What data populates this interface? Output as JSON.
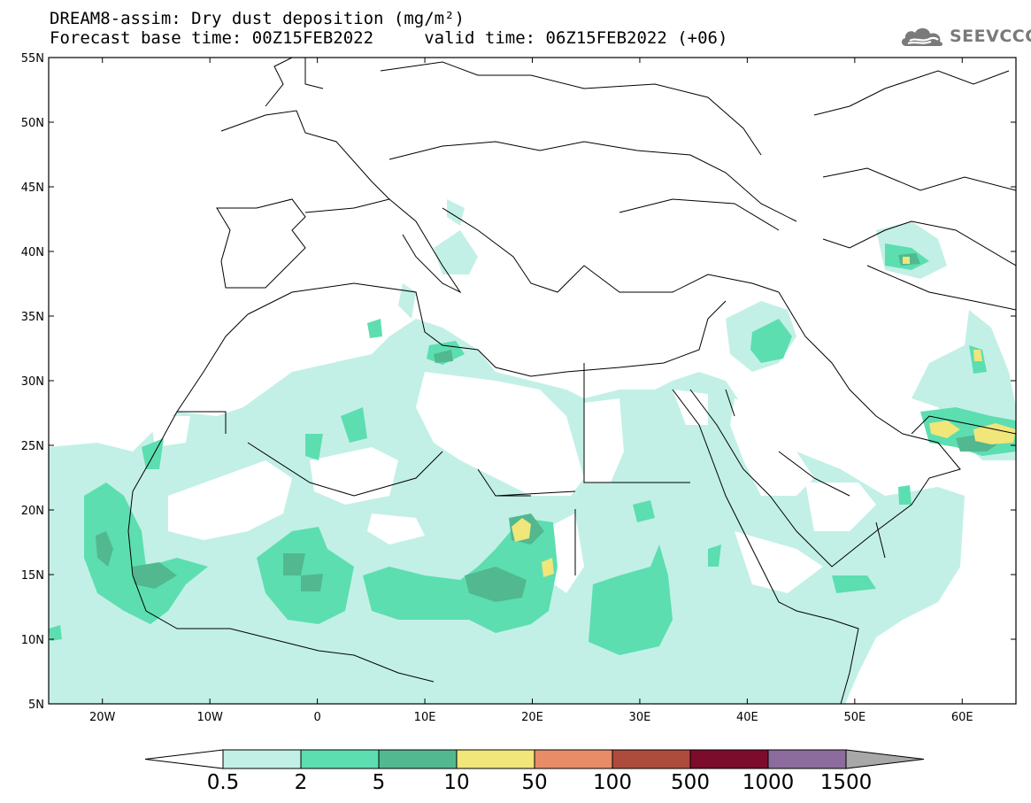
{
  "header": {
    "title_line1": "DREAM8-assim: Dry dust deposition (mg/m²)",
    "title_line2": "Forecast base time: 00Z15FEB2022     valid time: 06Z15FEB2022 (+06)",
    "logo_text": "SEEVCCC"
  },
  "map": {
    "lon_range": [
      -25,
      65
    ],
    "lat_range": [
      5,
      55
    ],
    "lat_ticks": [
      {
        "value": 55,
        "label": "55N"
      },
      {
        "value": 50,
        "label": "50N"
      },
      {
        "value": 45,
        "label": "45N"
      },
      {
        "value": 40,
        "label": "40N"
      },
      {
        "value": 35,
        "label": "35N"
      },
      {
        "value": 30,
        "label": "30N"
      },
      {
        "value": 25,
        "label": "25N"
      },
      {
        "value": 20,
        "label": "20N"
      },
      {
        "value": 15,
        "label": "15N"
      },
      {
        "value": 10,
        "label": "10N"
      },
      {
        "value": 5,
        "label": "5N"
      }
    ],
    "lon_ticks": [
      {
        "value": -20,
        "label": "20W"
      },
      {
        "value": -10,
        "label": "10W"
      },
      {
        "value": 0,
        "label": "0"
      },
      {
        "value": 10,
        "label": "10E"
      },
      {
        "value": 20,
        "label": "20E"
      },
      {
        "value": 30,
        "label": "30E"
      },
      {
        "value": 40,
        "label": "40E"
      },
      {
        "value": 50,
        "label": "50E"
      },
      {
        "value": 60,
        "label": "60E"
      }
    ]
  },
  "legend": {
    "labels": [
      "0.5",
      "2",
      "5",
      "10",
      "50",
      "100",
      "500",
      "1000",
      "1500"
    ],
    "colors": [
      "#c2f0e6",
      "#5cdeb0",
      "#52b88f",
      "#f0e67a",
      "#e88c68",
      "#ad4c3c",
      "#7c0c2c",
      "#8c6c9c"
    ],
    "under_color": "#ffffff",
    "over_color": "#a8a8a8"
  },
  "colors": {
    "lvl1": "#c2f0e6",
    "lvl2": "#5cdeb0",
    "lvl3": "#52b88f",
    "lvl4": "#f0e67a",
    "border": "#000000"
  }
}
